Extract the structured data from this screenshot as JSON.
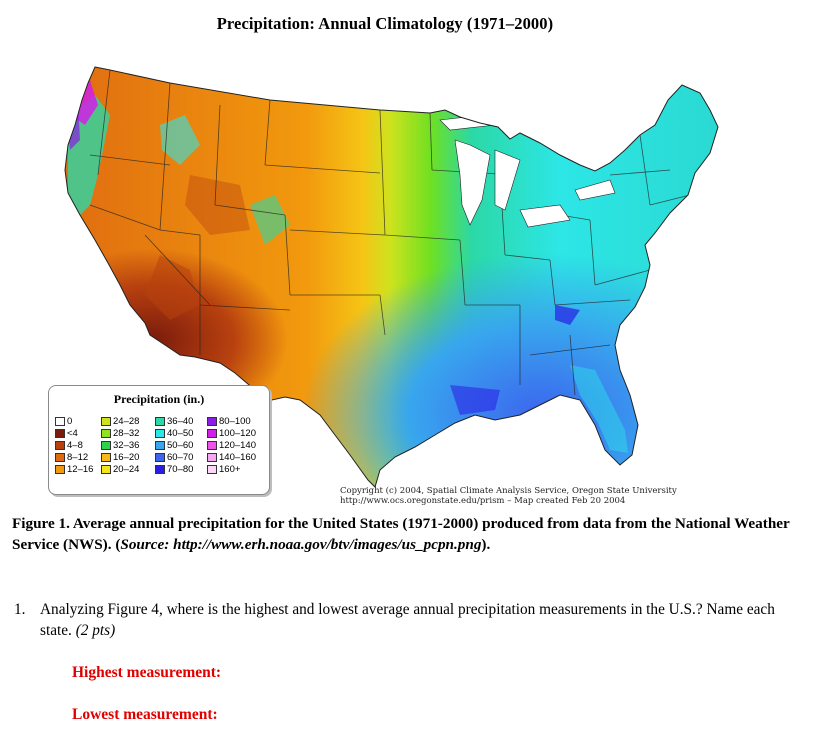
{
  "map": {
    "title": "Precipitation:  Annual Climatology (1971–2000)",
    "credit_line1": "Copyright (c) 2004, Spatial Climate Analysis Service, Oregon State University",
    "credit_line2": "http://www.ocs.oregonstate.edu/prism   –   Map created Feb 20 2004"
  },
  "legend": {
    "title": "Precipitation (in.)",
    "items": [
      {
        "label": "0",
        "color": "#ffffff"
      },
      {
        "label": "<4",
        "color": "#7a1b0c"
      },
      {
        "label": "4–8",
        "color": "#b8410f"
      },
      {
        "label": "8–12",
        "color": "#df6a10"
      },
      {
        "label": "12–16",
        "color": "#f29a0e"
      },
      {
        "label": "24–28",
        "color": "#cfe21e"
      },
      {
        "label": "28–32",
        "color": "#8fe21c"
      },
      {
        "label": "32–36",
        "color": "#2ed24a"
      },
      {
        "label": "16–20",
        "color": "#f8bb16"
      },
      {
        "label": "20–24",
        "color": "#f5e51b"
      },
      {
        "label": "36–40",
        "color": "#2bd8a6"
      },
      {
        "label": "40–50",
        "color": "#2de6e6"
      },
      {
        "label": "50–60",
        "color": "#38a6ee"
      },
      {
        "label": "60–70",
        "color": "#3c66ee"
      },
      {
        "label": "70–80",
        "color": "#2a1ee6"
      },
      {
        "label": "80–100",
        "color": "#8a1ee6"
      },
      {
        "label": "100–120",
        "color": "#d21ee6"
      },
      {
        "label": "120–140",
        "color": "#ee52e6"
      },
      {
        "label": "140–160",
        "color": "#f6a6f2"
      },
      {
        "label": "160+",
        "color": "#fbd8f8"
      }
    ]
  },
  "caption": {
    "main": "Figure 1. Average annual precipitation for the United States (1971-2000) produced from data from the National Weather Service (NWS). (",
    "source": "Source: http://www.erh.noaa.gov/btv/images/us_pcpn.png",
    "end": ")."
  },
  "question": {
    "number": "1.",
    "text": "Analyzing Figure 4, where is the highest and lowest average annual precipitation measurements in the U.S.? Name each state. ",
    "points": "(2 pts)"
  },
  "answers": {
    "highest_label": "Highest measurement:",
    "lowest_label": "Lowest measurement:"
  }
}
